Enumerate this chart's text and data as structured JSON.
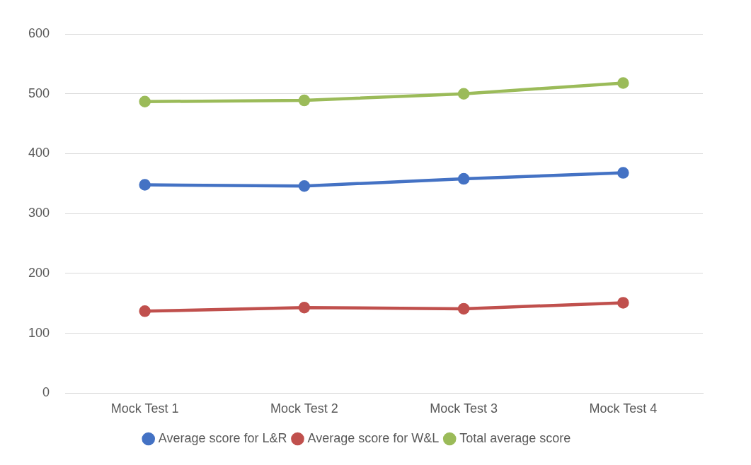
{
  "chart_data": {
    "type": "line",
    "categories": [
      "Mock Test 1",
      "Mock Test 2",
      "Mock Test 3",
      "Mock Test 4"
    ],
    "series": [
      {
        "name": "Average score for L&R",
        "color": "#4472c4",
        "values": [
          348,
          346,
          358,
          368
        ]
      },
      {
        "name": "Average score for W&L",
        "color": "#c0504d",
        "values": [
          137,
          143,
          141,
          151
        ]
      },
      {
        "name": "Total average score",
        "color": "#9bbb59",
        "values": [
          487,
          489,
          500,
          518
        ]
      }
    ],
    "ylim": [
      0,
      600
    ],
    "yticks": [
      0,
      100,
      200,
      300,
      400,
      500,
      600
    ],
    "grid": "y",
    "legend": "bottom",
    "marker": "circle",
    "line_style": "solid"
  }
}
